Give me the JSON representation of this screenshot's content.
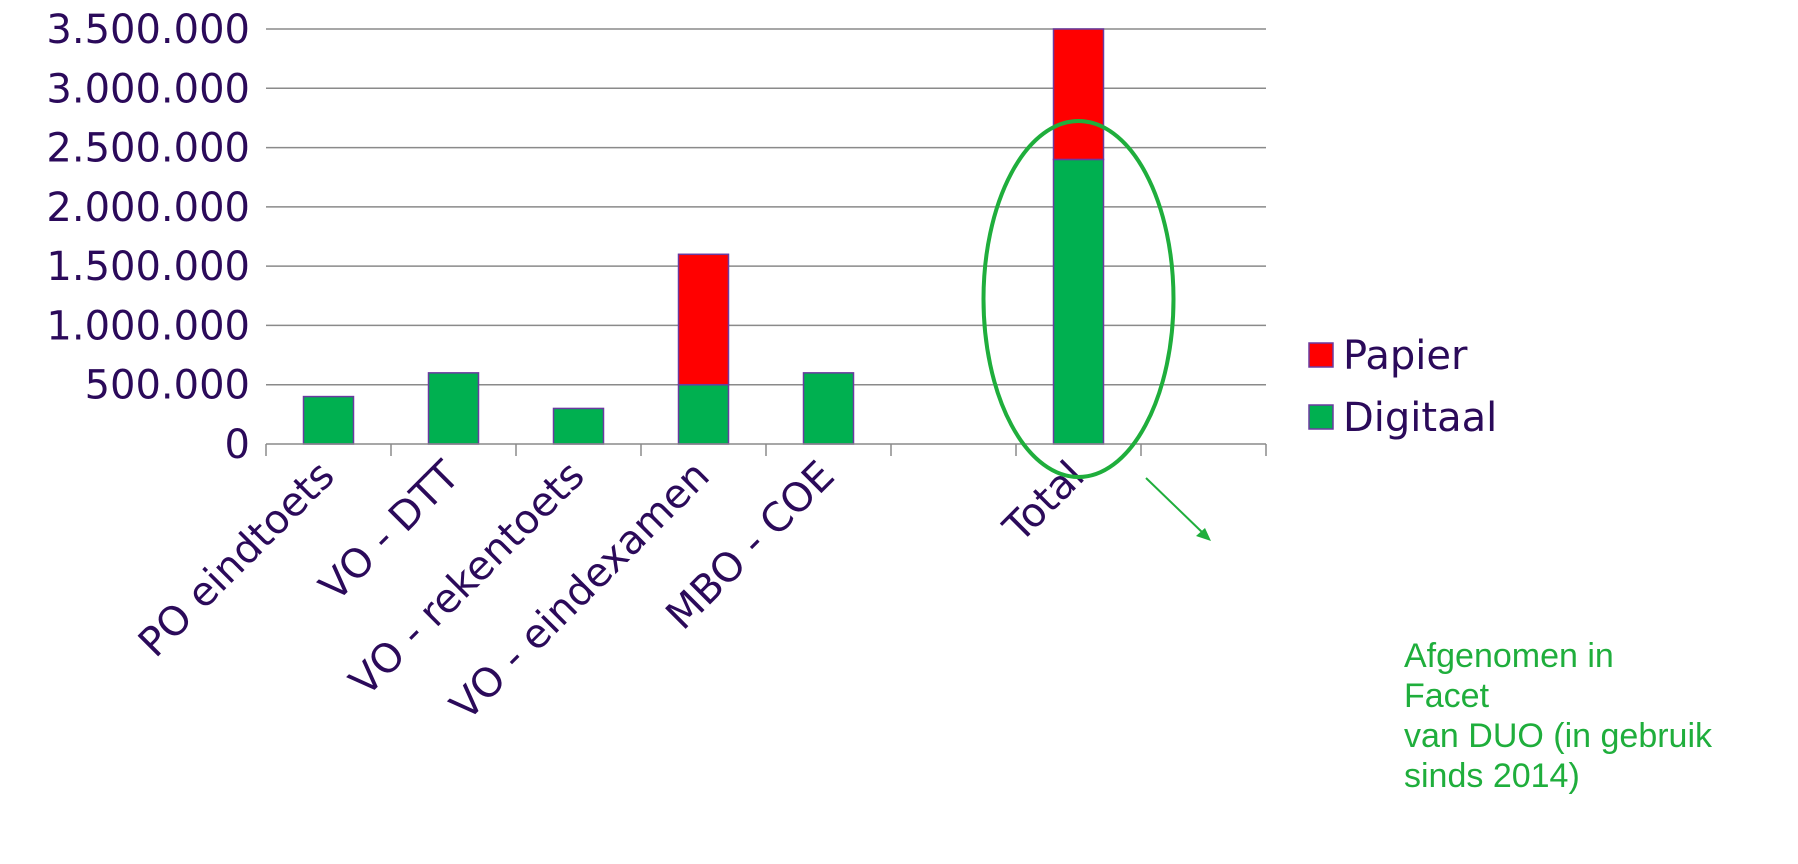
{
  "chart_data": {
    "type": "bar",
    "stacked": true,
    "categories": [
      "PO eindtoets",
      "VO - DTT",
      "VO - rekentoets",
      "VO - eindexamen",
      "MBO - COE",
      "",
      "Total",
      ""
    ],
    "series": [
      {
        "name": "Digitaal",
        "color": "#00b050",
        "values": [
          400000,
          600000,
          300000,
          500000,
          600000,
          null,
          2400000,
          null
        ]
      },
      {
        "name": "Papier",
        "color": "#ff0000",
        "values": [
          0,
          0,
          0,
          1100000,
          0,
          null,
          1100000,
          null
        ]
      }
    ],
    "yticks": [
      "0",
      "500.000",
      "1.000.000",
      "1.500.000",
      "2.000.000",
      "2.500.000",
      "3.000.000",
      "3.500.000"
    ],
    "ylim": [
      0,
      3500000
    ],
    "grid": true,
    "legend_position": "right",
    "legend_order": [
      "Papier",
      "Digitaal"
    ],
    "highlight": {
      "category": "Total",
      "color": "#1fae3c"
    },
    "annotation": "Afgenomen in\nFacet\nvan DUO (in gebruik\nsinds 2014)"
  }
}
